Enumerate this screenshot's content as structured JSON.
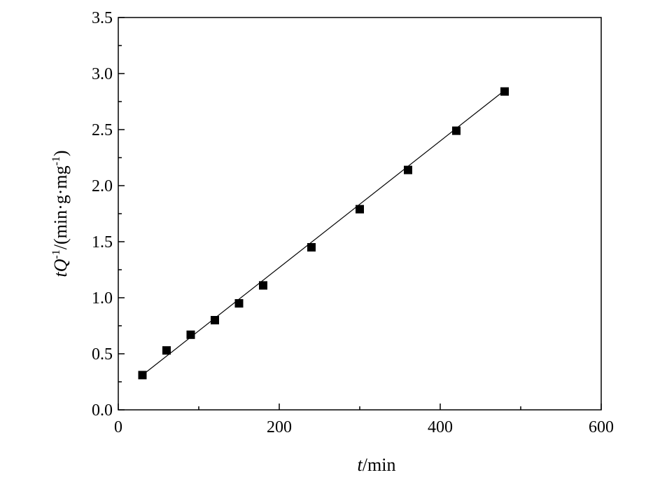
{
  "chart_data": {
    "type": "scatter",
    "title": "",
    "xlabel": {
      "var": "t",
      "unit": "/min"
    },
    "ylabel": {
      "var_t": "t",
      "var_Q": "Q",
      "exp": "-1",
      "unit_prefix": "/(min·g·mg",
      "unit_exp": "-1",
      "unit_suffix": ")"
    },
    "xlim": [
      0,
      600
    ],
    "ylim": [
      0,
      3.5
    ],
    "xticks": [
      0,
      200,
      400,
      600
    ],
    "xtick_labels": [
      "0",
      "200",
      "400",
      "600"
    ],
    "yticks": [
      0,
      0.5,
      1.0,
      1.5,
      2.0,
      2.5,
      3.0,
      3.5
    ],
    "ytick_labels": [
      "0.0",
      "0.5",
      "1.0",
      "1.5",
      "2.0",
      "2.5",
      "3.0",
      "3.5"
    ],
    "grid": false,
    "series": [
      {
        "marker": "square",
        "color": "#000000",
        "x": [
          30,
          60,
          90,
          120,
          150,
          180,
          240,
          300,
          360,
          420,
          480
        ],
        "y": [
          0.31,
          0.53,
          0.67,
          0.8,
          0.95,
          1.11,
          1.45,
          1.79,
          2.14,
          2.49,
          2.84
        ]
      }
    ],
    "fit_line": {
      "x": [
        30,
        480
      ],
      "y": [
        0.31,
        2.85
      ],
      "color": "#000000"
    }
  }
}
